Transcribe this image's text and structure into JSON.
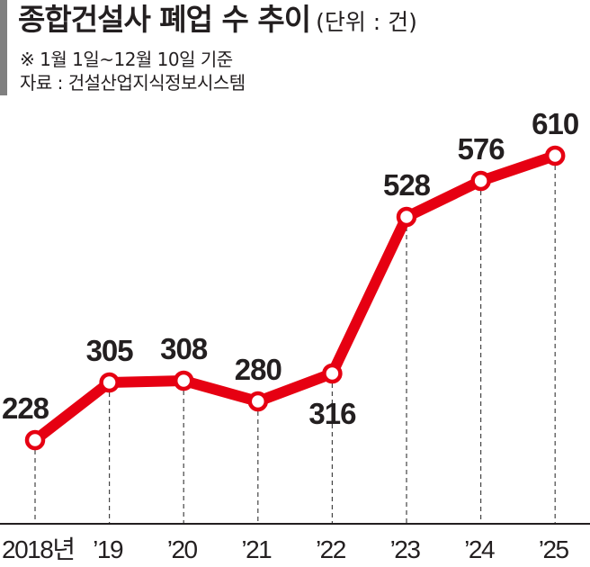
{
  "header": {
    "title": "종합건설사 폐업 수 추이",
    "unit": "(단위 : 건)",
    "note": "※ 1월 1일~12월 10일 기준",
    "source": "자료 : 건설산업지식정보시스템"
  },
  "colors": {
    "line": "#e60012",
    "marker_fill": "#ffffff",
    "accent_bar": "#808080",
    "text": "#231f20",
    "axis": "#231f20",
    "gridline": "#444444"
  },
  "chart_data": {
    "type": "line",
    "title": "종합건설사 폐업 수 추이",
    "subtitle": "(단위 : 건)",
    "annotations": [
      "※ 1월 1일~12월 10일 기준",
      "자료 : 건설산업지식정보시스템"
    ],
    "categories": [
      "2018년",
      "'19",
      "'20",
      "'21",
      "'22",
      "'23",
      "'24",
      "'25"
    ],
    "x": [
      2018,
      2019,
      2020,
      2021,
      2022,
      2023,
      2024,
      2025
    ],
    "series": [
      {
        "name": "종합건설사 폐업 수",
        "values": [
          228,
          305,
          308,
          280,
          316,
          528,
          576,
          610
        ],
        "color": "#e60012",
        "markers": true,
        "data_labels": true
      }
    ],
    "xlabel": "",
    "ylabel": "건",
    "grid": "vertical dashed drop-lines per point",
    "legend": "none"
  }
}
